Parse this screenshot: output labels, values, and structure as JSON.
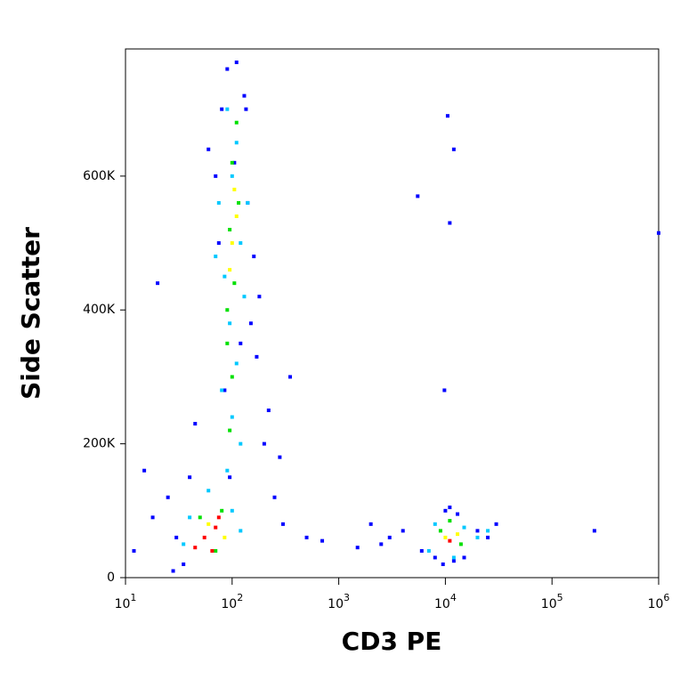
{
  "chart_data": {
    "type": "scatter",
    "x_label": "CD3 PE",
    "y_label": "Side Scatter",
    "xlog": true,
    "xlim": [
      10,
      1000000
    ],
    "ylim": [
      0,
      790000
    ],
    "xticks": [
      {
        "value": 10,
        "label": "10",
        "sup": "1"
      },
      {
        "value": 100,
        "label": "10",
        "sup": "2"
      },
      {
        "value": 1000,
        "label": "10",
        "sup": "3"
      },
      {
        "value": 10000,
        "label": "10",
        "sup": "4"
      },
      {
        "value": 100000,
        "label": "10",
        "sup": "5"
      },
      {
        "value": 1000000,
        "label": "10",
        "sup": "6"
      }
    ],
    "yticks": [
      0,
      {
        "value": 200000,
        "label": "200K"
      },
      {
        "value": 400000,
        "label": "400K"
      },
      {
        "value": 600000,
        "label": "600K"
      }
    ],
    "series": [
      {
        "color": "#0000ff",
        "x": [
          12,
          18,
          25,
          30,
          35,
          40,
          45,
          200,
          250,
          300,
          350,
          180,
          160,
          80,
          60,
          70,
          90,
          110,
          130,
          140,
          150,
          170,
          220,
          280,
          75,
          85,
          95,
          105,
          120,
          135,
          3000,
          2500,
          4000,
          6000,
          8000,
          9500,
          10000,
          11000,
          13000,
          15000,
          20000,
          25000,
          30000,
          12000,
          500,
          700,
          1500,
          2000,
          10500,
          12000,
          11000,
          9800,
          5500,
          1000000,
          250000,
          15,
          20,
          28
        ],
        "y": [
          40000,
          90000,
          120000,
          60000,
          20000,
          150000,
          230000,
          200000,
          120000,
          80000,
          300000,
          420000,
          480000,
          700000,
          640000,
          600000,
          760000,
          770000,
          720000,
          560000,
          380000,
          330000,
          250000,
          180000,
          500000,
          280000,
          150000,
          620000,
          350000,
          700000,
          60000,
          50000,
          70000,
          40000,
          30000,
          20000,
          100000,
          105000,
          95000,
          30000,
          70000,
          60000,
          80000,
          25000,
          60000,
          55000,
          45000,
          80000,
          690000,
          640000,
          530000,
          280000,
          570000,
          515000,
          70000,
          160000,
          440000,
          10000
        ]
      },
      {
        "color": "#00c8ff",
        "x": [
          90,
          110,
          100,
          75,
          120,
          85,
          130,
          95,
          110,
          80,
          100,
          120,
          90,
          60,
          40,
          35,
          100,
          120,
          8000,
          15000,
          20000,
          7000,
          12000,
          25000,
          140,
          70
        ],
        "y": [
          700000,
          650000,
          600000,
          560000,
          500000,
          450000,
          420000,
          380000,
          320000,
          280000,
          240000,
          200000,
          160000,
          130000,
          90000,
          50000,
          100000,
          70000,
          80000,
          75000,
          60000,
          40000,
          30000,
          70000,
          560000,
          480000
        ]
      },
      {
        "color": "#00e000",
        "x": [
          110,
          100,
          115,
          95,
          105,
          90,
          100,
          95,
          50,
          80,
          70,
          9000,
          14000,
          11000,
          90
        ],
        "y": [
          680000,
          620000,
          560000,
          520000,
          440000,
          400000,
          300000,
          220000,
          90000,
          100000,
          40000,
          70000,
          50000,
          85000,
          350000
        ]
      },
      {
        "color": "#ffff00",
        "x": [
          105,
          100,
          95,
          60,
          85,
          10000,
          13000,
          110
        ],
        "y": [
          580000,
          500000,
          460000,
          80000,
          60000,
          60000,
          65000,
          540000
        ]
      },
      {
        "color": "#ff0000",
        "x": [
          55,
          70,
          45,
          65,
          11000,
          75
        ],
        "y": [
          60000,
          75000,
          45000,
          40000,
          55000,
          90000
        ]
      }
    ]
  }
}
